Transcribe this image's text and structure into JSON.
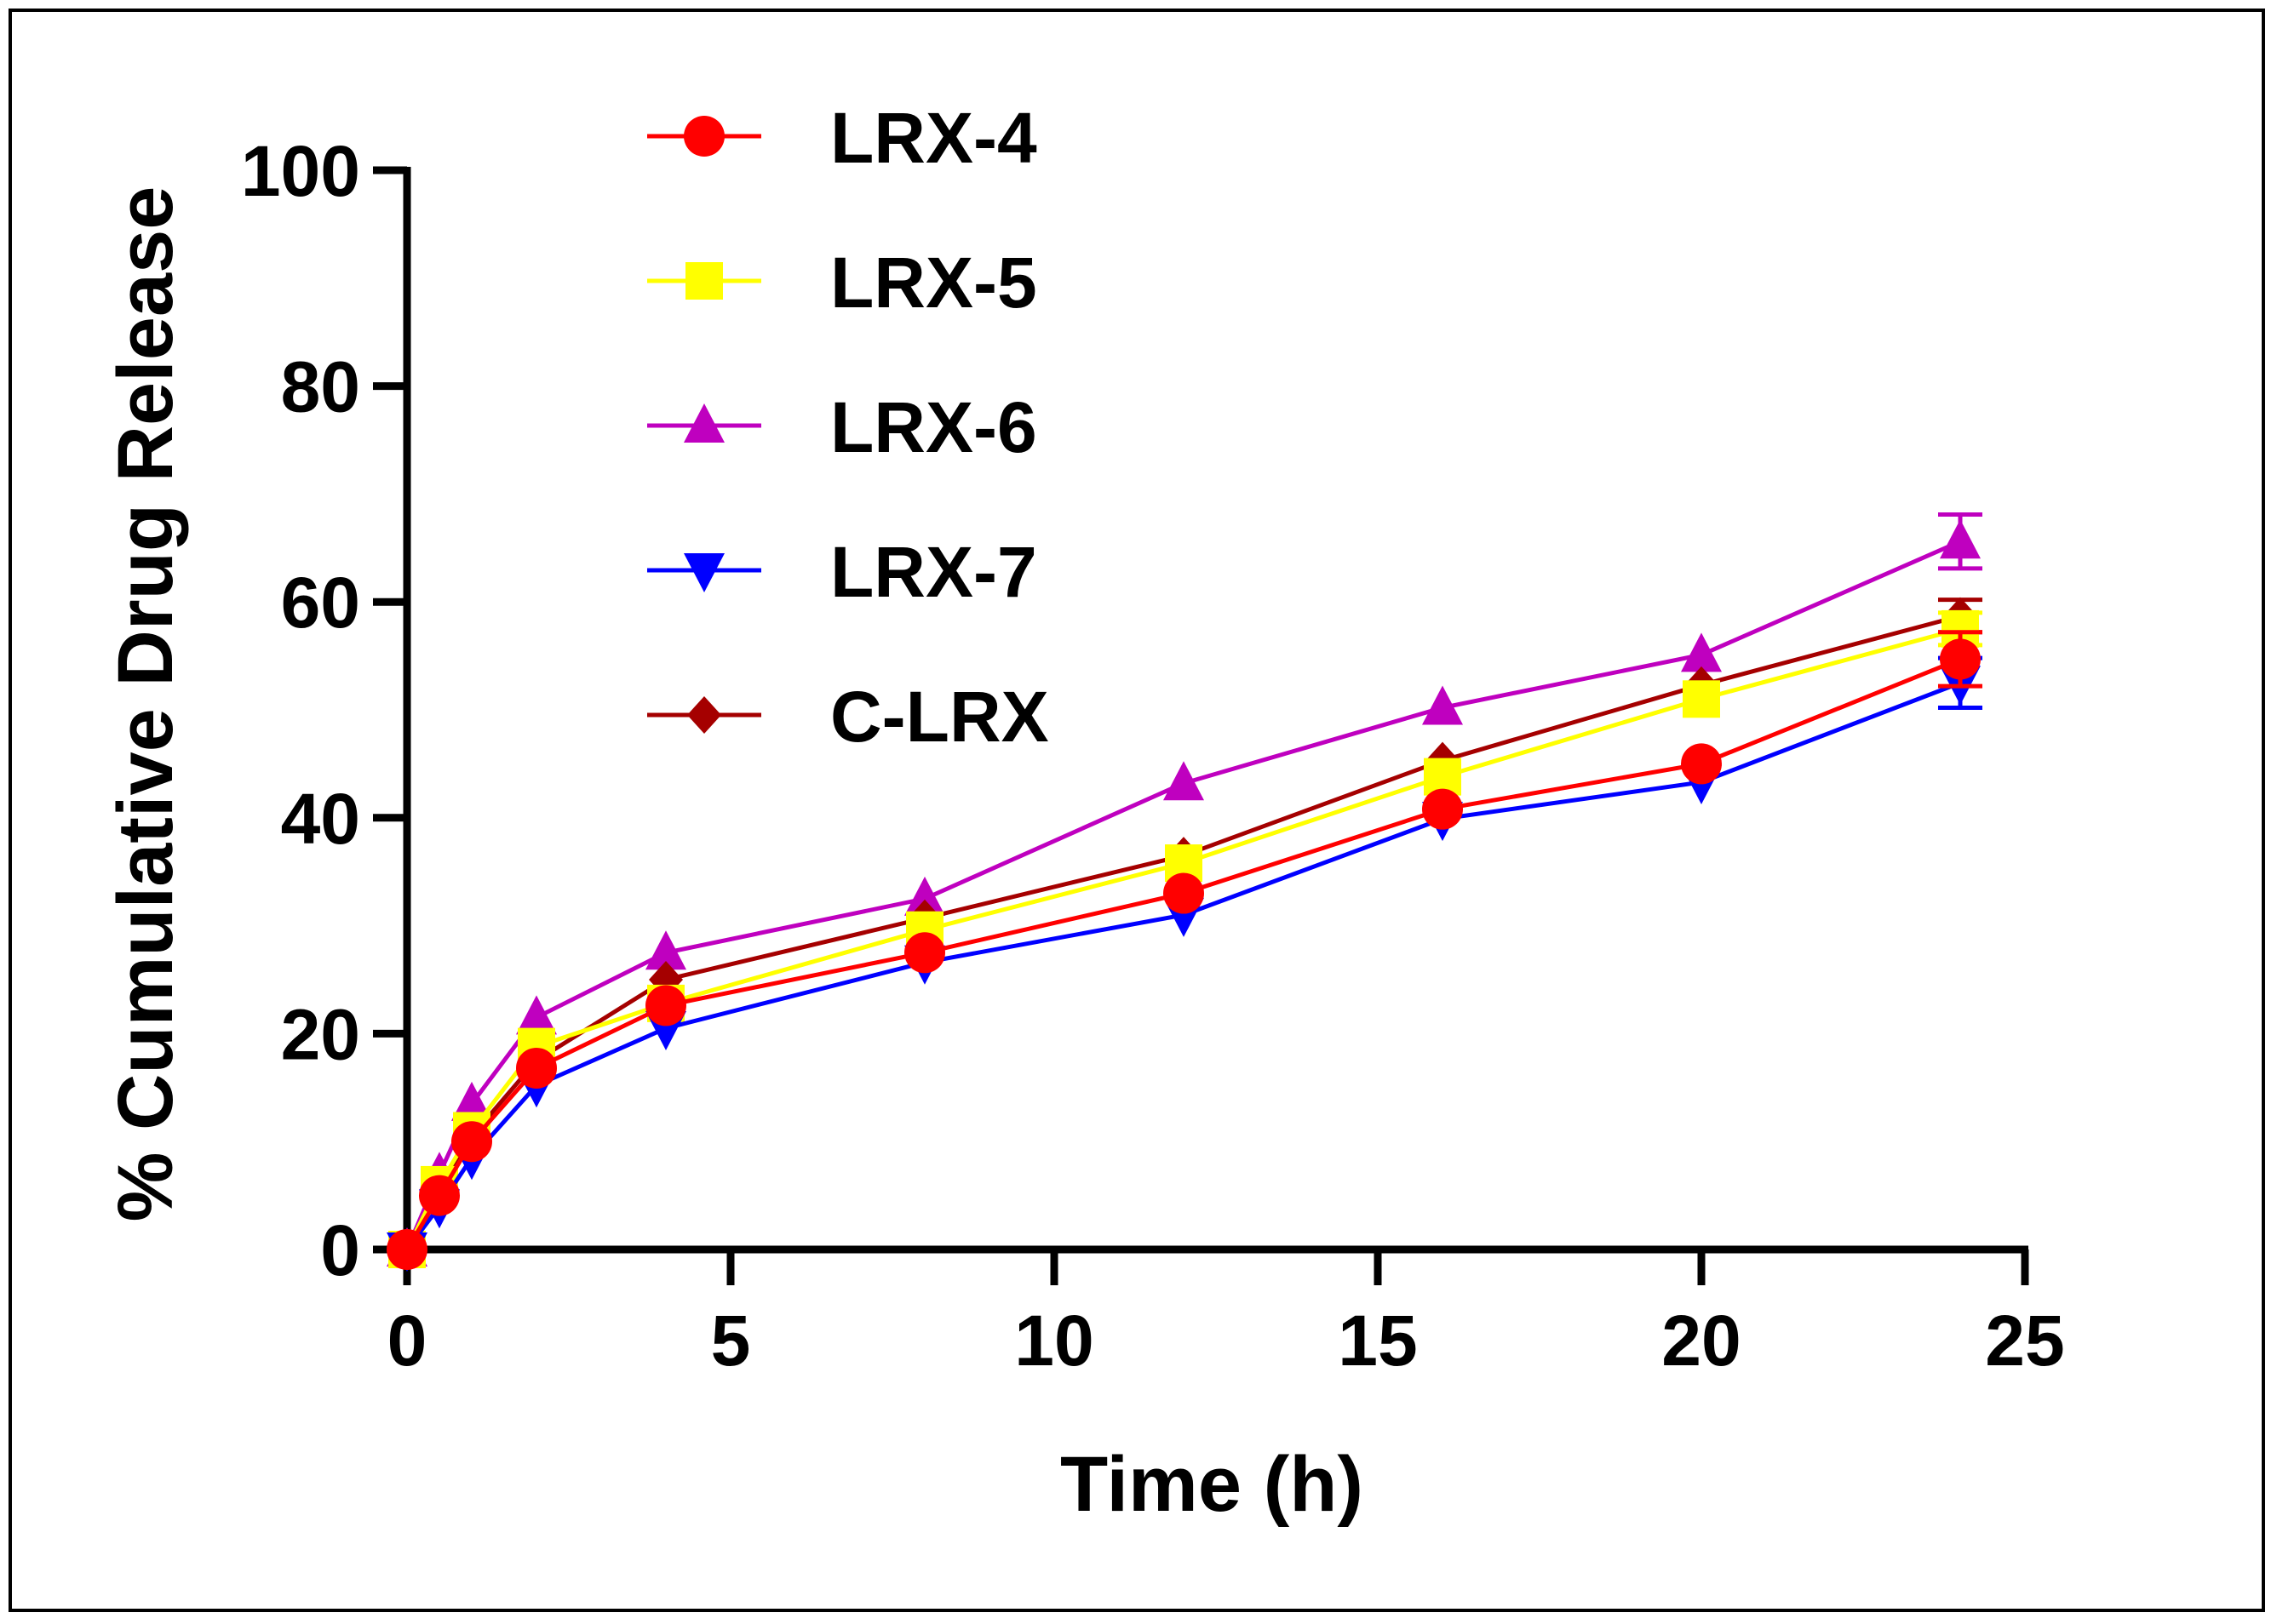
{
  "chart_data": {
    "type": "line",
    "title": "",
    "xlabel": "Time (h)",
    "ylabel": "% Cumulative Drug Release",
    "xlim": [
      0,
      25
    ],
    "ylim": [
      0,
      100
    ],
    "xticks": [
      0,
      5,
      10,
      15,
      20,
      25
    ],
    "yticks": [
      0,
      20,
      40,
      60,
      80,
      100
    ],
    "x": [
      0,
      0.5,
      1,
      2,
      4,
      8,
      12,
      16,
      20,
      24
    ],
    "legend_position": "top-left",
    "grid": false,
    "series": [
      {
        "name": "LRX-4",
        "color": "#ff0000",
        "marker": "circle",
        "values": [
          0,
          5,
          10,
          16.8,
          22.6,
          27.5,
          33,
          40.8,
          45,
          54.7
        ],
        "error_last": 2.5
      },
      {
        "name": "LRX-5",
        "color": "#ffff00",
        "marker": "square",
        "values": [
          0,
          6,
          11,
          18.8,
          22.8,
          29.6,
          35.8,
          43.8,
          51,
          57.5
        ],
        "error_last": 1.5
      },
      {
        "name": "LRX-6",
        "color": "#bf00bf",
        "marker": "triangle-up",
        "values": [
          0,
          7,
          13.5,
          21.5,
          27.5,
          32.5,
          43.2,
          50.2,
          55.1,
          65.6
        ],
        "error_last": 2.5
      },
      {
        "name": "LRX-7",
        "color": "#0000ff",
        "marker": "triangle-down",
        "values": [
          0,
          4,
          8.5,
          15.2,
          20.5,
          26.6,
          31,
          39.9,
          43.3,
          52.5
        ],
        "error_last": 2.3
      },
      {
        "name": "C-LRX",
        "color": "#a50000",
        "marker": "diamond",
        "values": [
          0,
          5.5,
          10.5,
          17.5,
          25,
          30.7,
          36.5,
          45.3,
          52.3,
          58.7
        ],
        "error_last": 1.5
      }
    ]
  }
}
